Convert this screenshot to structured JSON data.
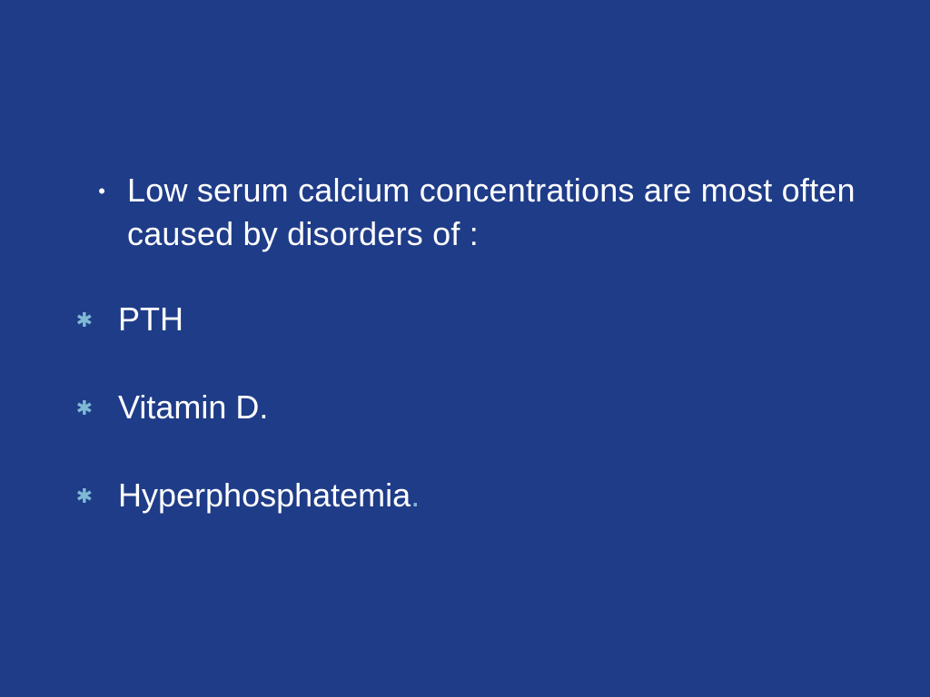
{
  "slide": {
    "background_color": "#1f3c88",
    "text_color": "#ffffff",
    "accent_color": "#7fb9d6",
    "font_family": "Arial",
    "lead": {
      "bullet_type": "dot",
      "text": "Low serum calcium concentrations are most often caused by disorders of :",
      "fontsize": 36
    },
    "items": [
      {
        "bullet_type": "star",
        "text": "PTH",
        "trailing_period": false
      },
      {
        "bullet_type": "star",
        "text": "Vitamin D",
        "trailing_period": true,
        "period_color": "#ffffff"
      },
      {
        "bullet_type": "star",
        "text": "Hyperphosphatemia",
        "trailing_period": true,
        "period_color": "#7fb9d6"
      }
    ],
    "bullet_styles": {
      "dot": {
        "glyph": "•",
        "color": "#ffffff",
        "fontsize": 22
      },
      "star": {
        "glyph": "✱",
        "color": "#7fb9d6",
        "fontsize": 22
      }
    }
  }
}
